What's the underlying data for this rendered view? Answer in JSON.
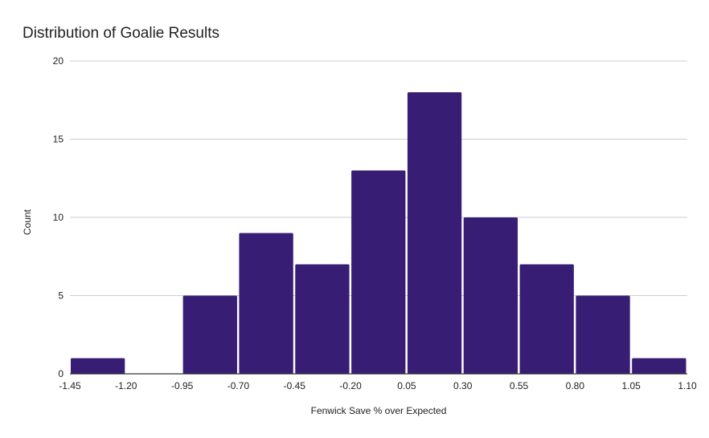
{
  "chart_data": {
    "type": "bar",
    "title": "Distribution of Goalie Results",
    "xlabel": "Fenwick Save % over Expected",
    "ylabel": "Count",
    "bin_edges": [
      "-1.45",
      "-1.20",
      "-0.95",
      "-0.70",
      "-0.45",
      "-0.20",
      "0.05",
      "0.30",
      "0.55",
      "0.80",
      "1.05",
      "1.10"
    ],
    "values": [
      1,
      0,
      5,
      9,
      7,
      13,
      18,
      10,
      7,
      5,
      1
    ],
    "ylim": [
      0,
      20
    ],
    "yticks": [
      0,
      5,
      10,
      15,
      20
    ],
    "grid": true,
    "bar_color": "#371e74"
  }
}
